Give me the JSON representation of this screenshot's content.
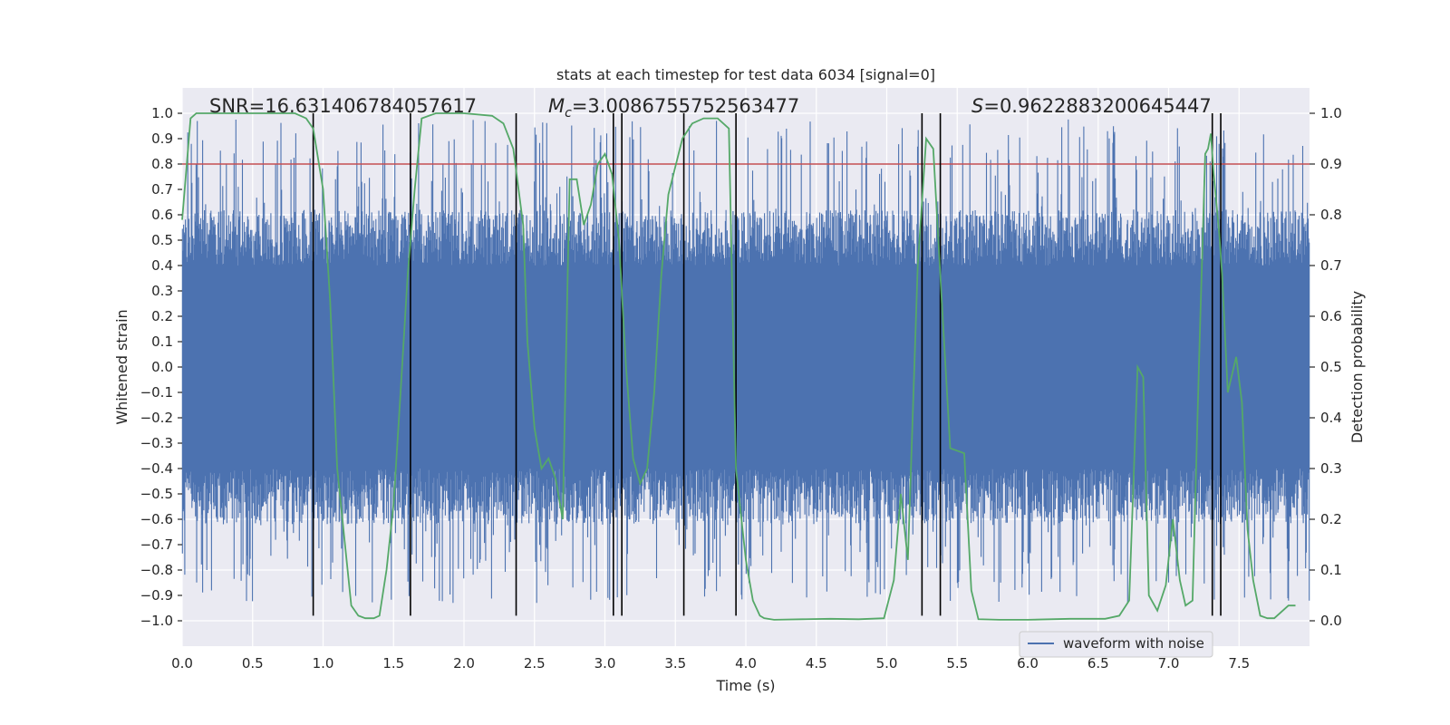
{
  "chart_data": {
    "type": "line",
    "title": "stats at each timestep for test data 6034 [signal=0]",
    "xlabel": "Time (s)",
    "ylabel": "Whitened strain",
    "y2label": "Detection probability",
    "xlim": [
      0.0,
      8.0
    ],
    "ylim": [
      -1.1,
      1.1
    ],
    "y2lim": [
      -0.05,
      1.05
    ],
    "x_ticks": [
      "0.0",
      "0.5",
      "1.0",
      "1.5",
      "2.0",
      "2.5",
      "3.0",
      "3.5",
      "4.0",
      "4.5",
      "5.0",
      "5.5",
      "6.0",
      "6.5",
      "7.0",
      "7.5"
    ],
    "y_ticks": [
      "1.0",
      "0.9",
      "0.8",
      "0.7",
      "0.6",
      "0.5",
      "0.4",
      "0.3",
      "0.2",
      "0.1",
      "0.0",
      "−0.1",
      "−0.2",
      "−0.3",
      "−0.4",
      "−0.5",
      "−0.6",
      "−0.7",
      "−0.8",
      "−0.9",
      "−1.0"
    ],
    "y2_ticks": [
      "1.0",
      "0.9",
      "0.8",
      "0.7",
      "0.6",
      "0.5",
      "0.4",
      "0.3",
      "0.2",
      "0.1",
      "0.0"
    ],
    "annotations": {
      "snr": "SNR=16.631406784057617",
      "mc_symbol": "M",
      "mc_sub": "c",
      "mc_value": "=3.0086755752563477",
      "s_symbol": "S",
      "s_value": "=0.9622883200645447"
    },
    "threshold": 0.8,
    "vertical_lines": [
      0.93,
      1.62,
      2.37,
      3.06,
      3.12,
      3.56,
      3.93,
      5.25,
      5.38,
      7.31,
      7.37
    ],
    "legend": {
      "label": "waveform with noise",
      "position": "lower right"
    },
    "series": [
      {
        "name": "waveform with noise",
        "axis": "left",
        "color": "#4c72b0",
        "envelope_abs": 0.4,
        "envelope_peak": 0.6
      },
      {
        "name": "Detection probability",
        "axis": "right",
        "color": "#55a868",
        "x": [
          0.0,
          0.06,
          0.1,
          0.2,
          0.4,
          0.6,
          0.8,
          0.88,
          0.93,
          1.0,
          1.05,
          1.1,
          1.2,
          1.25,
          1.3,
          1.36,
          1.4,
          1.45,
          1.5,
          1.55,
          1.6,
          1.65,
          1.7,
          1.8,
          2.0,
          2.2,
          2.28,
          2.35,
          2.42,
          2.45,
          2.5,
          2.55,
          2.6,
          2.65,
          2.7,
          2.75,
          2.8,
          2.85,
          2.9,
          2.95,
          3.0,
          3.05,
          3.1,
          3.15,
          3.2,
          3.25,
          3.3,
          3.35,
          3.4,
          3.45,
          3.55,
          3.62,
          3.7,
          3.8,
          3.88,
          3.93,
          4.0,
          4.05,
          4.1,
          4.13,
          4.2,
          4.4,
          4.6,
          4.8,
          4.98,
          5.05,
          5.1,
          5.15,
          5.22,
          5.28,
          5.33,
          5.38,
          5.45,
          5.55,
          5.6,
          5.65,
          5.8,
          6.0,
          6.3,
          6.55,
          6.65,
          6.72,
          6.78,
          6.82,
          6.86,
          6.92,
          6.98,
          7.03,
          7.08,
          7.12,
          7.17,
          7.22,
          7.26,
          7.28,
          7.3,
          7.32,
          7.36,
          7.38,
          7.42,
          7.48,
          7.52,
          7.56,
          7.6,
          7.65,
          7.7,
          7.75,
          7.85,
          7.9
        ]
      }
    ]
  }
}
